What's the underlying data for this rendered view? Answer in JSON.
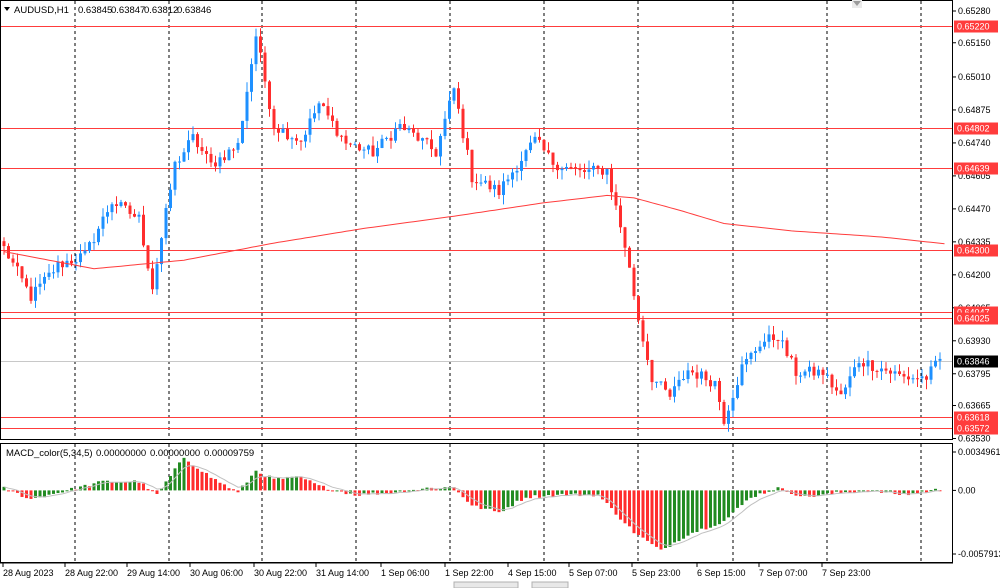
{
  "main_info": {
    "symbol": "AUDUSD,H1",
    "open": "0.63845",
    "high": "0.63847",
    "low": "0.63812",
    "close": "0.63846"
  },
  "macd_info": {
    "name": "MACD_color(5,34,5)",
    "value1": "0.00000000",
    "value2": "0.00000000",
    "value3": "0.00009759"
  },
  "price_scale": {
    "ticks": [
      "0.65280",
      "0.65150",
      "0.65010",
      "0.64875",
      "0.64740",
      "0.64605",
      "0.64470",
      "0.64335",
      "0.64200",
      "0.64065",
      "0.63930",
      "0.63795",
      "0.63665",
      "0.63530"
    ],
    "min": 0.6353,
    "max": 0.6528
  },
  "levels": [
    {
      "price": 0.6522,
      "label": "0.65220"
    },
    {
      "price": 0.64802,
      "label": "0.64802"
    },
    {
      "price": 0.64639,
      "label": "0.64639"
    },
    {
      "price": 0.643,
      "label": "0.64300"
    },
    {
      "price": 0.64047,
      "label": "0.64047"
    },
    {
      "price": 0.64025,
      "label": "0.64025"
    },
    {
      "price": 0.63618,
      "label": "0.63618"
    },
    {
      "price": 0.63572,
      "label": "0.63572"
    }
  ],
  "current_price": {
    "price": 0.63846,
    "label": "0.63846"
  },
  "macd_scale": {
    "ticks": [
      "0.0034961",
      "0.00",
      "-0.0057913"
    ],
    "max": 0.0034961,
    "min": -0.0057913
  },
  "time_axis": [
    "28 Aug 2023",
    "28 Aug 22:00",
    "29 Aug 14:00",
    "30 Aug 06:00",
    "30 Aug 22:00",
    "31 Aug 14:00",
    "1 Sep 06:00",
    "1 Sep 22:00",
    "4 Sep 15:00",
    "5 Sep 07:00",
    "5 Sep 23:00",
    "6 Sep 15:00",
    "7 Sep 07:00",
    "7 Sep 23:00"
  ],
  "colors": {
    "bull": "#1e90ff",
    "bear": "#ff2d2d",
    "level": "#ff3c3c",
    "ma": "#ff3c3c",
    "macd_up": "#228b22",
    "macd_down": "#ff2d2d",
    "signal": "#c0c0c0",
    "current": "#000000"
  },
  "chart_data": {
    "type": "candlestick",
    "symbol": "AUDUSD",
    "timeframe": "H1",
    "anchors": [
      {
        "bar": 0,
        "p": 0.6431
      },
      {
        "bar": 6,
        "p": 0.6411
      },
      {
        "bar": 12,
        "p": 0.6424
      },
      {
        "bar": 18,
        "p": 0.6428
      },
      {
        "bar": 24,
        "p": 0.645
      },
      {
        "bar": 30,
        "p": 0.6443
      },
      {
        "bar": 33,
        "p": 0.6415
      },
      {
        "bar": 38,
        "p": 0.6465
      },
      {
        "bar": 42,
        "p": 0.6476
      },
      {
        "bar": 46,
        "p": 0.6465
      },
      {
        "bar": 52,
        "p": 0.6473
      },
      {
        "bar": 56,
        "p": 0.6518
      },
      {
        "bar": 60,
        "p": 0.6481
      },
      {
        "bar": 66,
        "p": 0.6475
      },
      {
        "bar": 70,
        "p": 0.649
      },
      {
        "bar": 76,
        "p": 0.6474
      },
      {
        "bar": 82,
        "p": 0.647
      },
      {
        "bar": 88,
        "p": 0.6481
      },
      {
        "bar": 92,
        "p": 0.6476
      },
      {
        "bar": 96,
        "p": 0.647
      },
      {
        "bar": 100,
        "p": 0.6496
      },
      {
        "bar": 104,
        "p": 0.646
      },
      {
        "bar": 110,
        "p": 0.6454
      },
      {
        "bar": 114,
        "p": 0.6465
      },
      {
        "bar": 118,
        "p": 0.6475
      },
      {
        "bar": 122,
        "p": 0.6466
      },
      {
        "bar": 128,
        "p": 0.6462
      },
      {
        "bar": 134,
        "p": 0.6463
      },
      {
        "bar": 138,
        "p": 0.6432
      },
      {
        "bar": 141,
        "p": 0.6402
      },
      {
        "bar": 144,
        "p": 0.6378
      },
      {
        "bar": 148,
        "p": 0.637
      },
      {
        "bar": 152,
        "p": 0.6381
      },
      {
        "bar": 158,
        "p": 0.6376
      },
      {
        "bar": 160,
        "p": 0.6361
      },
      {
        "bar": 164,
        "p": 0.6382
      },
      {
        "bar": 168,
        "p": 0.6392
      },
      {
        "bar": 172,
        "p": 0.6395
      },
      {
        "bar": 176,
        "p": 0.638
      },
      {
        "bar": 182,
        "p": 0.638
      },
      {
        "bar": 186,
        "p": 0.637
      },
      {
        "bar": 190,
        "p": 0.6385
      },
      {
        "bar": 196,
        "p": 0.6381
      },
      {
        "bar": 200,
        "p": 0.6378
      },
      {
        "bar": 205,
        "p": 0.6378
      },
      {
        "bar": 208,
        "p": 0.6385
      }
    ],
    "ma_points": [
      {
        "bar": 0,
        "p": 0.64295
      },
      {
        "bar": 20,
        "p": 0.64225
      },
      {
        "bar": 40,
        "p": 0.6426
      },
      {
        "bar": 60,
        "p": 0.6433
      },
      {
        "bar": 80,
        "p": 0.6439
      },
      {
        "bar": 100,
        "p": 0.6444
      },
      {
        "bar": 120,
        "p": 0.64495
      },
      {
        "bar": 134,
        "p": 0.64525
      },
      {
        "bar": 140,
        "p": 0.64515
      },
      {
        "bar": 150,
        "p": 0.64465
      },
      {
        "bar": 160,
        "p": 0.6441
      },
      {
        "bar": 175,
        "p": 0.6438
      },
      {
        "bar": 195,
        "p": 0.64355
      },
      {
        "bar": 210,
        "p": 0.64325
      }
    ],
    "macd_anchors": [
      {
        "bar": 0,
        "v": 0.0002
      },
      {
        "bar": 6,
        "v": -0.0008
      },
      {
        "bar": 14,
        "v": 0.0
      },
      {
        "bar": 22,
        "v": 0.0008
      },
      {
        "bar": 30,
        "v": 0.0008
      },
      {
        "bar": 34,
        "v": -0.0004
      },
      {
        "bar": 40,
        "v": 0.003
      },
      {
        "bar": 46,
        "v": 0.0012
      },
      {
        "bar": 52,
        "v": -0.0002
      },
      {
        "bar": 56,
        "v": 0.0018
      },
      {
        "bar": 60,
        "v": 0.001
      },
      {
        "bar": 66,
        "v": 0.0012
      },
      {
        "bar": 70,
        "v": 0.0004
      },
      {
        "bar": 78,
        "v": -0.0004
      },
      {
        "bar": 86,
        "v": -0.0002
      },
      {
        "bar": 94,
        "v": 0.0002
      },
      {
        "bar": 100,
        "v": 0.0003
      },
      {
        "bar": 104,
        "v": -0.0014
      },
      {
        "bar": 110,
        "v": -0.002
      },
      {
        "bar": 116,
        "v": -0.0006
      },
      {
        "bar": 124,
        "v": -0.0004
      },
      {
        "bar": 132,
        "v": -0.0004
      },
      {
        "bar": 140,
        "v": -0.0038
      },
      {
        "bar": 146,
        "v": -0.0055
      },
      {
        "bar": 152,
        "v": -0.004
      },
      {
        "bar": 160,
        "v": -0.0028
      },
      {
        "bar": 166,
        "v": -0.0006
      },
      {
        "bar": 172,
        "v": 0.0002
      },
      {
        "bar": 178,
        "v": -0.0006
      },
      {
        "bar": 186,
        "v": -0.0002
      },
      {
        "bar": 192,
        "v": 0.0
      },
      {
        "bar": 200,
        "v": -0.0004
      },
      {
        "bar": 208,
        "v": 0.0001
      }
    ]
  }
}
